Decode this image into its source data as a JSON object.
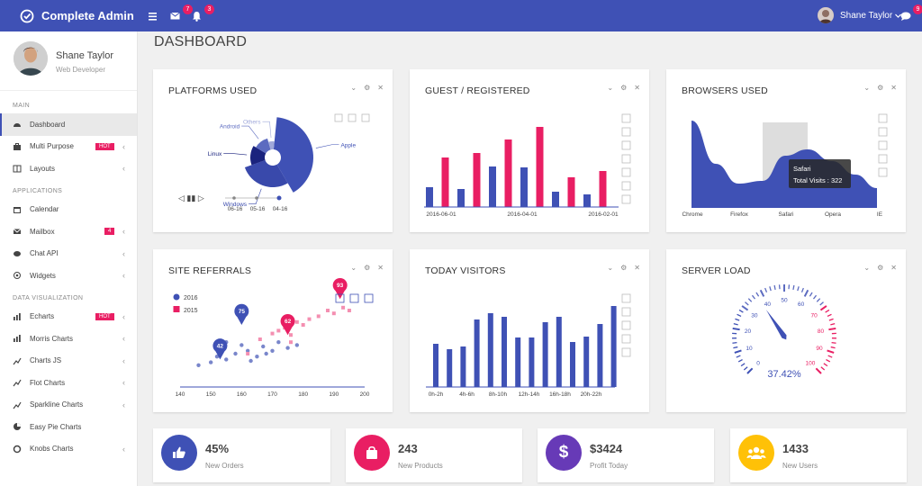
{
  "topbar": {
    "brand": "Complete Admin",
    "mail_count": "7",
    "bell_count": "3",
    "user": "Shane Taylor",
    "chat_count": "9"
  },
  "colors": {
    "primary": "#3f51b5",
    "accent": "#e91e63"
  },
  "sidebar": {
    "profile": {
      "name": "Shane Taylor",
      "role": "Web Developer"
    },
    "sections": [
      {
        "label": "MAIN",
        "items": [
          {
            "label": "Dashboard",
            "icon": "dashboard-icon",
            "active": true
          },
          {
            "label": "Multi Purpose",
            "icon": "briefcase-icon",
            "badge": "HOT",
            "chevron": true
          },
          {
            "label": "Layouts",
            "icon": "columns-icon",
            "chevron": true
          }
        ]
      },
      {
        "label": "APPLICATIONS",
        "items": [
          {
            "label": "Calendar",
            "icon": "calendar-icon"
          },
          {
            "label": "Mailbox",
            "icon": "envelope-icon",
            "count": "4",
            "chevron": true
          },
          {
            "label": "Chat API",
            "icon": "comments-icon",
            "chevron": true
          },
          {
            "label": "Widgets",
            "icon": "target-icon",
            "chevron": true
          }
        ]
      },
      {
        "label": "DATA VISUALIZATION",
        "items": [
          {
            "label": "Echarts",
            "icon": "bar-chart-icon",
            "badge": "HOT",
            "chevron": true
          },
          {
            "label": "Morris Charts",
            "icon": "bar-chart-icon",
            "chevron": true
          },
          {
            "label": "Charts JS",
            "icon": "line-chart-icon",
            "chevron": true
          },
          {
            "label": "Flot Charts",
            "icon": "line-chart-icon",
            "chevron": true
          },
          {
            "label": "Sparkline Charts",
            "icon": "line-chart-icon",
            "chevron": true
          },
          {
            "label": "Easy Pie Charts",
            "icon": "pie-chart-icon"
          },
          {
            "label": "Knobs Charts",
            "icon": "circle-icon",
            "chevron": true
          }
        ]
      }
    ]
  },
  "page_title": "DASHBOARD",
  "cards": {
    "platforms": "PLATFORMS USED",
    "guest": "GUEST / REGISTERED",
    "browsers": "BROWSERS USED",
    "referrals": "SITE REFERRALS",
    "visitors": "TODAY VISITORS",
    "load": "SERVER LOAD"
  },
  "chart_data": [
    {
      "type": "pie",
      "title": "PLATFORMS USED",
      "labels": [
        "Apple",
        "Windows",
        "Linux",
        "Android",
        "Others"
      ],
      "values": [
        40,
        28,
        14,
        12,
        6
      ],
      "timeline": [
        "06-16",
        "05-16",
        "04-16"
      ]
    },
    {
      "type": "bar",
      "title": "GUEST / REGISTERED",
      "x_ticks": [
        "2016-06-01",
        "2016-04-01",
        "2016-02-01"
      ],
      "series": [
        {
          "values": [
            22,
            20,
            45,
            44,
            17,
            14
          ]
        },
        {
          "values": [
            55,
            60,
            75,
            89,
            33,
            40
          ]
        }
      ],
      "ylim": [
        0,
        100
      ]
    },
    {
      "type": "area",
      "title": "BROWSERS USED",
      "categories": [
        "Chrome",
        "Firefox",
        "Safari",
        "Opera",
        "IE"
      ],
      "values": [
        1000,
        380,
        322,
        260,
        170
      ],
      "tooltip": {
        "label": "Safari",
        "text": "Total Visits : 322"
      }
    },
    {
      "type": "scatter",
      "title": "SITE REFERRALS",
      "series": [
        {
          "name": "2016",
          "points": [
            [
              146,
              12
            ],
            [
              150,
              14
            ],
            [
              152,
              18
            ],
            [
              155,
              16
            ],
            [
              158,
              20
            ],
            [
              162,
              22
            ],
            [
              163,
              15
            ],
            [
              165,
              18
            ],
            [
              167,
              25
            ],
            [
              168,
              20
            ],
            [
              170,
              22
            ],
            [
              172,
              28
            ],
            [
              175,
              24
            ],
            [
              178,
              26
            ],
            [
              155,
              28
            ],
            [
              160,
              26
            ]
          ]
        },
        {
          "name": "2015",
          "points": [
            [
              162,
              20
            ],
            [
              166,
              30
            ],
            [
              170,
              34
            ],
            [
              172,
              36
            ],
            [
              174,
              38
            ],
            [
              176,
              33
            ],
            [
              178,
              42
            ],
            [
              180,
              40
            ],
            [
              182,
              44
            ],
            [
              185,
              46
            ],
            [
              188,
              50
            ],
            [
              190,
              48
            ],
            [
              193,
              52
            ],
            [
              195,
              50
            ],
            [
              176,
              28
            ]
          ]
        }
      ],
      "markers": [
        {
          "label": "42",
          "x": 153,
          "y": 16
        },
        {
          "label": "75",
          "x": 160,
          "y": 40
        },
        {
          "label": "62",
          "x": 175,
          "y": 33
        },
        {
          "label": "93",
          "x": 192,
          "y": 58
        }
      ],
      "x_ticks": [
        "140",
        "150",
        "160",
        "170",
        "180",
        "190",
        "200"
      ],
      "xlim": [
        140,
        200
      ]
    },
    {
      "type": "bar",
      "title": "TODAY VISITORS",
      "x_ticks": [
        "0h-2h",
        "4h-6h",
        "8h-10h",
        "12h-14h",
        "16h-18h",
        "20h-22h"
      ],
      "values": [
        48,
        42,
        45,
        75,
        82,
        78,
        55,
        55,
        72,
        78,
        50,
        56,
        70,
        90
      ],
      "ylim": [
        0,
        100
      ]
    },
    {
      "type": "gauge",
      "title": "SERVER LOAD",
      "value": 37.42,
      "display": "37.42%",
      "ticks": [
        "0",
        "10",
        "20",
        "30",
        "40",
        "50",
        "60",
        "70",
        "80",
        "90",
        "100"
      ]
    }
  ],
  "stats": [
    {
      "value": "45%",
      "label": "New Orders",
      "color": "#3f51b5",
      "icon": "thumbs-up-icon"
    },
    {
      "value": "243",
      "label": "New Products",
      "color": "#e91e63",
      "icon": "shopping-bag-icon"
    },
    {
      "value": "$3424",
      "label": "Profit Today",
      "color": "#673ab7",
      "icon": "dollar-icon"
    },
    {
      "value": "1433",
      "label": "New Users",
      "color": "#ffc107",
      "icon": "users-icon"
    }
  ]
}
